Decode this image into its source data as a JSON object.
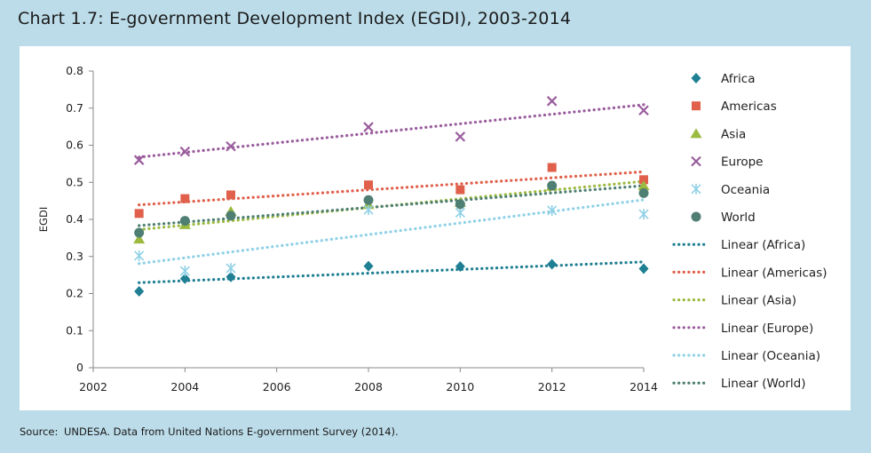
{
  "header": {
    "title": "Chart 1.7: E-government Development Index (EGDI), 2003-2014"
  },
  "footer": {
    "source_label": "Source:",
    "source_text": "UNDESA. Data from United Nations E-government Survey (2014)."
  },
  "colors": {
    "Africa": "#1f7f93",
    "Americas": "#e0604b",
    "Asia": "#9cba3f",
    "Europe": "#9a5d9d",
    "Oceania": "#8fd1e6",
    "World": "#4e7f72"
  },
  "chart_data": {
    "type": "scatter",
    "title": "Chart 1.7: E-government Development Index (EGDI), 2003-2014",
    "xlabel": "",
    "ylabel": "EGDI",
    "xlim": [
      2002,
      2014
    ],
    "ylim": [
      0,
      0.8
    ],
    "xticks": [
      2002,
      2004,
      2006,
      2008,
      2010,
      2012,
      2014
    ],
    "yticks": [
      0,
      0.1,
      0.2,
      0.3,
      0.4,
      0.5,
      0.6,
      0.7,
      0.8
    ],
    "x": [
      2003,
      2004,
      2005,
      2008,
      2010,
      2012,
      2014
    ],
    "legend_position": "right",
    "series": [
      {
        "name": "Africa",
        "marker": "diamond",
        "values": [
          0.206,
          0.24,
          0.245,
          0.274,
          0.273,
          0.279,
          0.267
        ]
      },
      {
        "name": "Americas",
        "marker": "square",
        "values": [
          0.416,
          0.456,
          0.466,
          0.493,
          0.48,
          0.54,
          0.507
        ]
      },
      {
        "name": "Asia",
        "marker": "triangle",
        "values": [
          0.347,
          0.386,
          0.422,
          0.44,
          0.446,
          0.49,
          0.491
        ]
      },
      {
        "name": "Europe",
        "marker": "x",
        "values": [
          0.56,
          0.583,
          0.597,
          0.649,
          0.623,
          0.719,
          0.694
        ]
      },
      {
        "name": "Oceania",
        "marker": "asterisk",
        "values": [
          0.302,
          0.261,
          0.268,
          0.426,
          0.418,
          0.424,
          0.414
        ]
      },
      {
        "name": "World",
        "marker": "circle",
        "values": [
          0.364,
          0.396,
          0.41,
          0.452,
          0.441,
          0.491,
          0.471
        ]
      }
    ],
    "trendlines": [
      {
        "name": "Linear (Africa)",
        "series": "Africa"
      },
      {
        "name": "Linear (Americas)",
        "series": "Americas"
      },
      {
        "name": "Linear (Asia)",
        "series": "Asia"
      },
      {
        "name": "Linear (Europe)",
        "series": "Europe"
      },
      {
        "name": "Linear (Oceania)",
        "series": "Oceania"
      },
      {
        "name": "Linear (World)",
        "series": "World"
      }
    ]
  }
}
